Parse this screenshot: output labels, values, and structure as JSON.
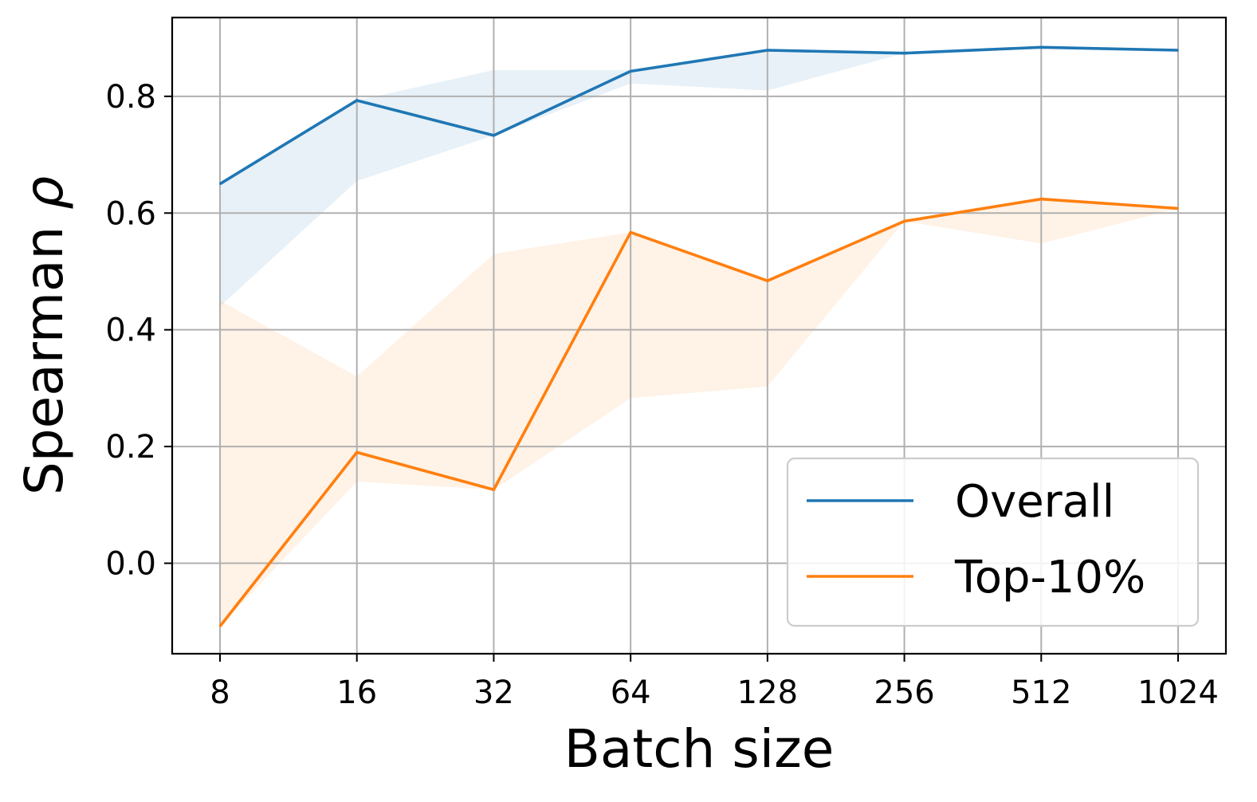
{
  "chart_data": {
    "type": "line",
    "xlabel": "Batch size",
    "ylabel_text": "Spearman ",
    "ylabel_symbol": "ρ",
    "categories": [
      "8",
      "16",
      "32",
      "64",
      "128",
      "256",
      "512",
      "1024"
    ],
    "ylim": [
      -0.155,
      0.935
    ],
    "yticks": [
      0.0,
      0.2,
      0.4,
      0.6,
      0.8
    ],
    "ytick_labels": [
      "0.0",
      "0.2",
      "0.4",
      "0.6",
      "0.8"
    ],
    "grid": true,
    "legend_position": "lower-right",
    "series": [
      {
        "name": "Overall",
        "color": "#1f77b4",
        "values": [
          0.65,
          0.793,
          0.733,
          0.843,
          0.879,
          0.874,
          0.884,
          0.879
        ],
        "band_upper": [
          0.65,
          0.793,
          0.845,
          0.845,
          0.879,
          0.874,
          0.884,
          0.879
        ],
        "band_lower": [
          0.44,
          0.655,
          0.733,
          0.822,
          0.81,
          0.874,
          0.884,
          0.879
        ]
      },
      {
        "name": "Top-10%",
        "color": "#ff7f0e",
        "values": [
          -0.108,
          0.19,
          0.126,
          0.567,
          0.484,
          0.586,
          0.624,
          0.608
        ],
        "band_upper": [
          0.45,
          0.32,
          0.53,
          0.567,
          0.484,
          0.586,
          0.624,
          0.608
        ],
        "band_lower": [
          -0.108,
          0.14,
          0.126,
          0.283,
          0.303,
          0.586,
          0.548,
          0.608
        ]
      }
    ]
  }
}
